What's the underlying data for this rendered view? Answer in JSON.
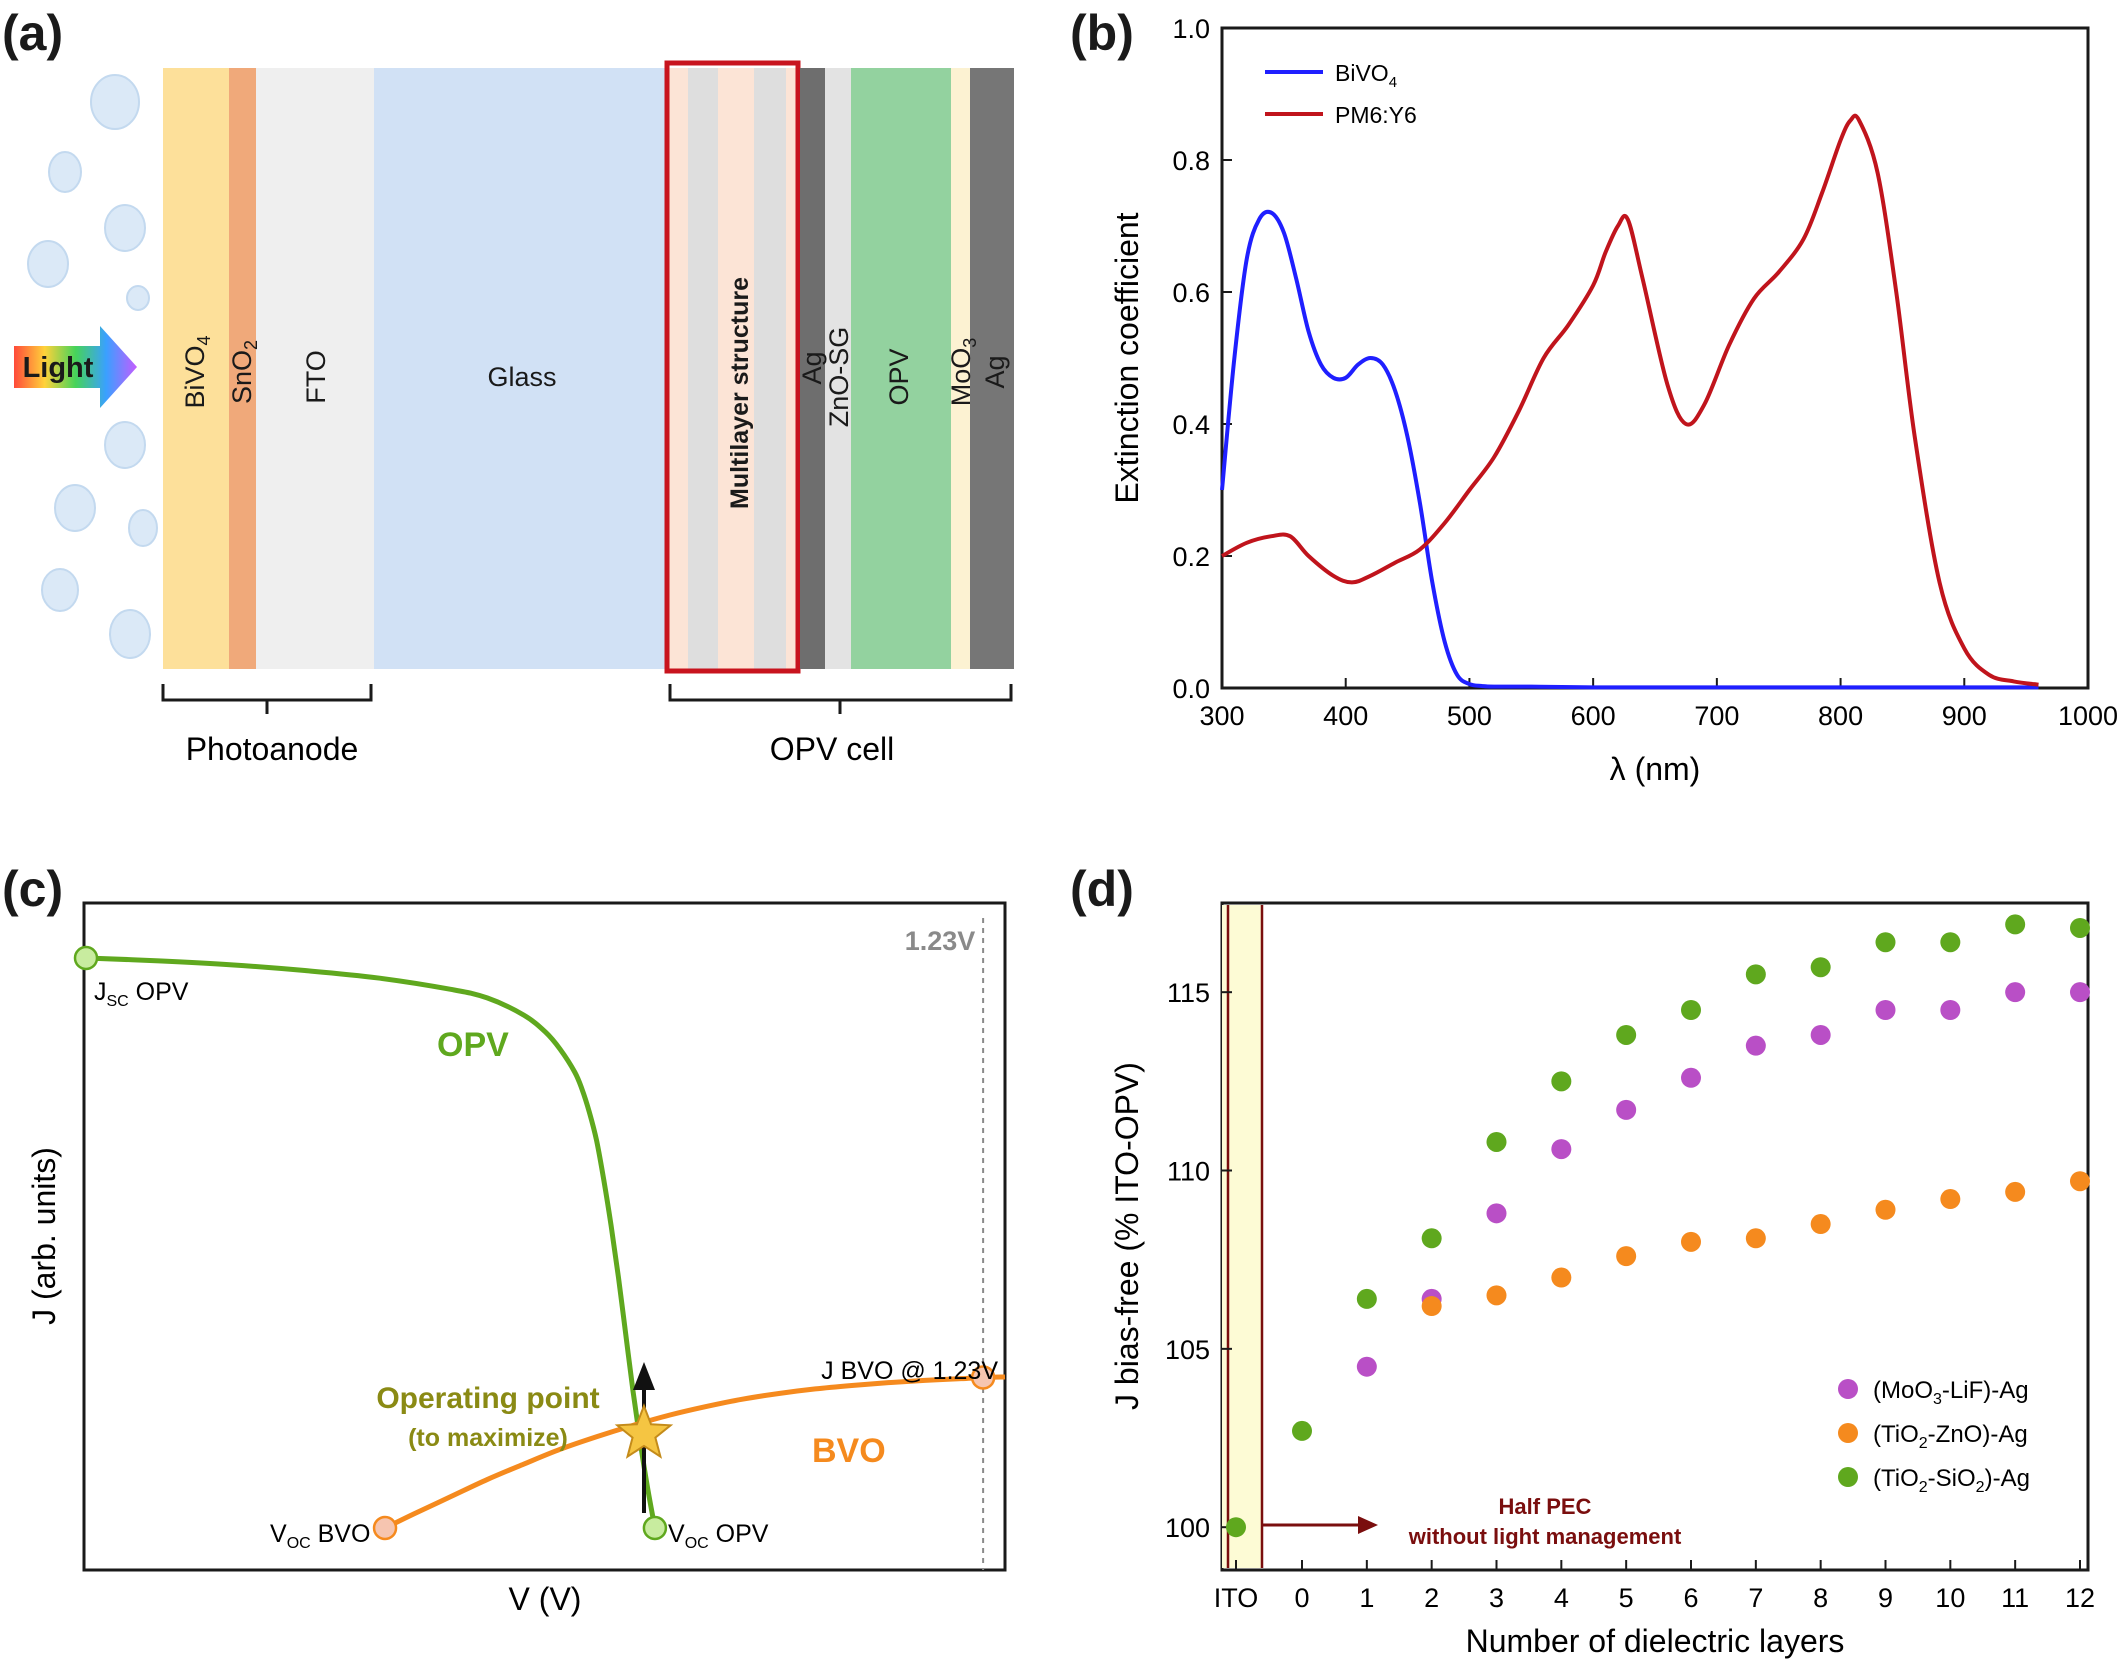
{
  "panel_labels": {
    "a": "(a)",
    "b": "(b)",
    "c": "(c)",
    "d": "(d)"
  },
  "colors": {
    "bivo4_blue": "#1f1fff",
    "pm6y6_red": "#c0141c",
    "opv_green": "#5fa81e",
    "bvo_orange": "#f58a1e",
    "multilayer_box": "#c8141e",
    "star": "#f5c542",
    "series_moo3_lif": "#b94fc6",
    "series_tio2_zno": "#f58a1e",
    "series_tio2_sio2": "#5fa81e",
    "half_pec_arrow": "#7a0e0e",
    "ito_band": "#fdfbd5"
  },
  "panel_a": {
    "light_label": "Light",
    "layers": {
      "bivo4": "BiVO",
      "bivo4_sub": "4",
      "sno2": "SnO",
      "sno2_sub": "2",
      "fto": "FTO",
      "glass": "Glass",
      "multilayer": "Multilayer structure",
      "ag": "Ag",
      "znosg": "ZnO-SG",
      "opv": "OPV",
      "moo3": "MoO",
      "moo3_sub": "3",
      "ag2": "Ag"
    },
    "brackets": {
      "photoanode": "Photoanode",
      "opv_cell": "OPV cell"
    }
  },
  "chart_data": [
    {
      "panel": "b",
      "type": "line",
      "xlabel": "λ (nm)",
      "ylabel": "Extinction coefficient",
      "xlim": [
        300,
        1000
      ],
      "ylim": [
        0,
        1.0
      ],
      "xticks": [
        "300",
        "400",
        "500",
        "600",
        "700",
        "800",
        "900",
        "1000"
      ],
      "yticks": [
        "0.0",
        "0.2",
        "0.4",
        "0.6",
        "0.8",
        "1.0"
      ],
      "legend_position": "top-left",
      "series": [
        {
          "name": "BiVO4",
          "name_main": "BiVO",
          "name_sub": "4",
          "x": [
            300,
            310,
            320,
            330,
            340,
            350,
            360,
            370,
            380,
            390,
            400,
            410,
            420,
            430,
            440,
            450,
            460,
            470,
            480,
            490,
            500,
            510,
            520,
            550,
            600,
            700,
            800,
            900,
            960
          ],
          "y": [
            0.3,
            0.5,
            0.65,
            0.71,
            0.72,
            0.69,
            0.62,
            0.54,
            0.49,
            0.47,
            0.47,
            0.49,
            0.5,
            0.49,
            0.45,
            0.38,
            0.28,
            0.16,
            0.07,
            0.02,
            0.006,
            0.003,
            0.002,
            0.002,
            0.001,
            0.001,
            0.001,
            0.001,
            0.001
          ]
        },
        {
          "name": "PM6:Y6",
          "x": [
            300,
            320,
            340,
            355,
            370,
            390,
            405,
            420,
            440,
            460,
            480,
            500,
            520,
            540,
            560,
            580,
            600,
            610,
            620,
            628,
            640,
            660,
            675,
            690,
            710,
            730,
            750,
            770,
            785,
            800,
            808,
            815,
            830,
            845,
            860,
            880,
            900,
            920,
            940,
            960
          ],
          "y": [
            0.2,
            0.22,
            0.23,
            0.23,
            0.2,
            0.17,
            0.16,
            0.17,
            0.19,
            0.21,
            0.25,
            0.3,
            0.35,
            0.42,
            0.5,
            0.55,
            0.61,
            0.66,
            0.7,
            0.71,
            0.62,
            0.46,
            0.4,
            0.43,
            0.52,
            0.59,
            0.63,
            0.68,
            0.75,
            0.83,
            0.86,
            0.86,
            0.78,
            0.6,
            0.38,
            0.16,
            0.06,
            0.02,
            0.01,
            0.005
          ]
        }
      ]
    },
    {
      "panel": "c",
      "type": "line",
      "xlabel": "V (V)",
      "ylabel": "J (arb. units)",
      "grid": false,
      "series": [
        {
          "name": "OPV",
          "x": [
            0,
            0.1,
            0.2,
            0.3,
            0.4,
            0.5,
            0.55,
            0.6,
            0.63,
            0.65,
            0.67,
            0.68,
            0.69,
            0.7,
            0.71,
            0.72,
            0.73,
            0.74,
            0.75,
            0.76,
            0.77,
            0.78
          ],
          "y": [
            1.0,
            0.995,
            0.988,
            0.978,
            0.965,
            0.945,
            0.93,
            0.9,
            0.87,
            0.84,
            0.8,
            0.77,
            0.73,
            0.68,
            0.61,
            0.53,
            0.44,
            0.34,
            0.24,
            0.15,
            0.07,
            0.0
          ]
        },
        {
          "name": "BVO",
          "x": [
            0.41,
            0.45,
            0.5,
            0.55,
            0.6,
            0.65,
            0.7,
            0.75,
            0.8,
            0.85,
            0.9,
            0.95,
            1.0,
            1.05,
            1.1,
            1.15,
            1.2,
            1.23,
            1.26
          ],
          "y": [
            0.0,
            0.025,
            0.055,
            0.085,
            0.112,
            0.138,
            0.16,
            0.18,
            0.198,
            0.213,
            0.226,
            0.236,
            0.244,
            0.25,
            0.255,
            0.259,
            0.262,
            0.264,
            0.265
          ]
        }
      ],
      "annotations": {
        "vline_label": "1.23V",
        "jsc_main": "J",
        "jsc_sub": "SC",
        "jsc_rest": " OPV",
        "voc_bvo_main": "V",
        "voc_bvo_sub": "OC",
        "voc_bvo_rest": " BVO",
        "voc_opv_main": "V",
        "voc_opv_sub": "OC",
        "voc_opv_rest": " OPV",
        "jbvo": "J BVO @ 1.23V",
        "opv_label": "OPV",
        "bvo_label": "BVO",
        "operating_point": "Operating point",
        "to_maximize": "(to maximize)"
      },
      "points": {
        "jsc": [
          0,
          1.0
        ],
        "voc_bvo": [
          0.41,
          0.0
        ],
        "voc_opv": [
          0.78,
          0.0
        ],
        "jbvo_123": [
          1.23,
          0.264
        ],
        "operating": [
          0.765,
          0.165
        ]
      },
      "xlim": [
        0,
        1.26
      ],
      "ylim": [
        0,
        1.0
      ],
      "vline_x": 1.23
    },
    {
      "panel": "d",
      "type": "scatter",
      "xlabel": "Number of dielectric layers",
      "ylabel": "J bias-free (% ITO-OPV)",
      "categories": [
        "ITO",
        "0",
        "1",
        "2",
        "3",
        "4",
        "5",
        "6",
        "7",
        "8",
        "9",
        "10",
        "11",
        "12"
      ],
      "yticks": [
        "100",
        "105",
        "110",
        "115"
      ],
      "ylim": [
        98.8,
        117.5
      ],
      "legend_position": "bottom-right",
      "series": [
        {
          "name": "(MoO3-LiF)-Ag",
          "legend_main": "(MoO",
          "legend_sub": "3",
          "legend_rest": "-LiF)-Ag",
          "x": [
            "1",
            "2",
            "3",
            "4",
            "5",
            "6",
            "7",
            "8",
            "9",
            "10",
            "11",
            "12"
          ],
          "values": [
            104.5,
            106.4,
            108.8,
            110.6,
            111.7,
            112.6,
            113.5,
            113.8,
            114.5,
            114.5,
            115.0,
            115.0
          ]
        },
        {
          "name": "(TiO2-ZnO)-Ag",
          "legend_main": "(TiO",
          "legend_sub": "2",
          "legend_rest": "-ZnO)-Ag",
          "x": [
            "2",
            "3",
            "4",
            "5",
            "6",
            "7",
            "8",
            "9",
            "10",
            "11",
            "12"
          ],
          "values": [
            106.2,
            106.5,
            107.0,
            107.6,
            108.0,
            108.1,
            108.5,
            108.9,
            109.2,
            109.4,
            109.7
          ]
        },
        {
          "name": "(TiO2-SiO2)-Ag",
          "legend_main": "(TiO",
          "legend_sub": "2",
          "legend_mid": "-SiO",
          "legend_sub2": "2",
          "legend_rest": ")-Ag",
          "x": [
            "ITO",
            "0",
            "1",
            "2",
            "3",
            "4",
            "5",
            "6",
            "7",
            "8",
            "9",
            "10",
            "11",
            "12"
          ],
          "values": [
            100.0,
            102.7,
            106.4,
            108.1,
            110.8,
            112.5,
            113.8,
            114.5,
            115.5,
            115.7,
            116.4,
            116.4,
            116.9,
            116.8
          ]
        }
      ],
      "annotations": {
        "half_pec_line1": "Half PEC",
        "half_pec_line2": "without light management"
      }
    }
  ]
}
